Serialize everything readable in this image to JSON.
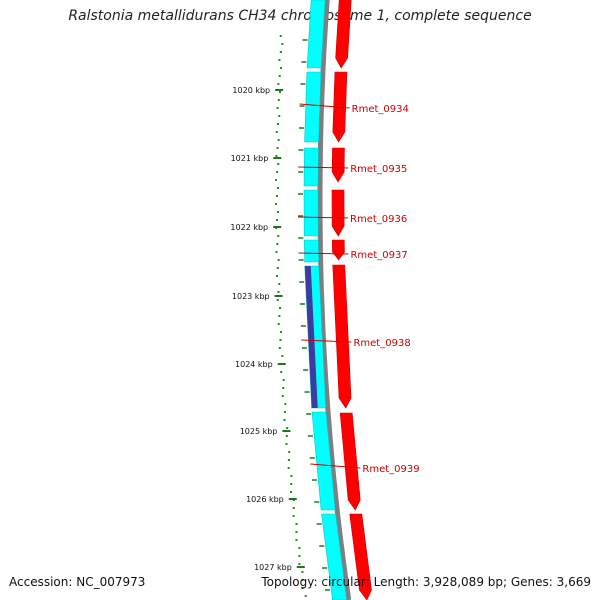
{
  "title": "Ralstonia metallidurans CH34 chromosome 1, complete sequence",
  "accession_text": "Accession: NC_007973",
  "topology_text": "Topology: circular; Length: 3,928,089 bp; Genes: 3,669",
  "colors": {
    "backbone": "#7f7f7f",
    "forward_cds": "#ff0000",
    "reverse_cds": "#00ffff",
    "rna_feature": "#3c3ca0",
    "gene_label": "#cc0000",
    "ticks": "#1a7a1a",
    "gc_ticks": "#228b22"
  },
  "scale_labels": [
    "1020 kbp",
    "1021 kbp",
    "1022 kbp",
    "1023 kbp",
    "1024 kbp",
    "1025 kbp",
    "1026 kbp",
    "1027 kbp"
  ],
  "gene_labels": [
    "Rmet_0934",
    "Rmet_0935",
    "Rmet_0936",
    "Rmet_0937",
    "Rmet_0938",
    "Rmet_0939"
  ]
}
